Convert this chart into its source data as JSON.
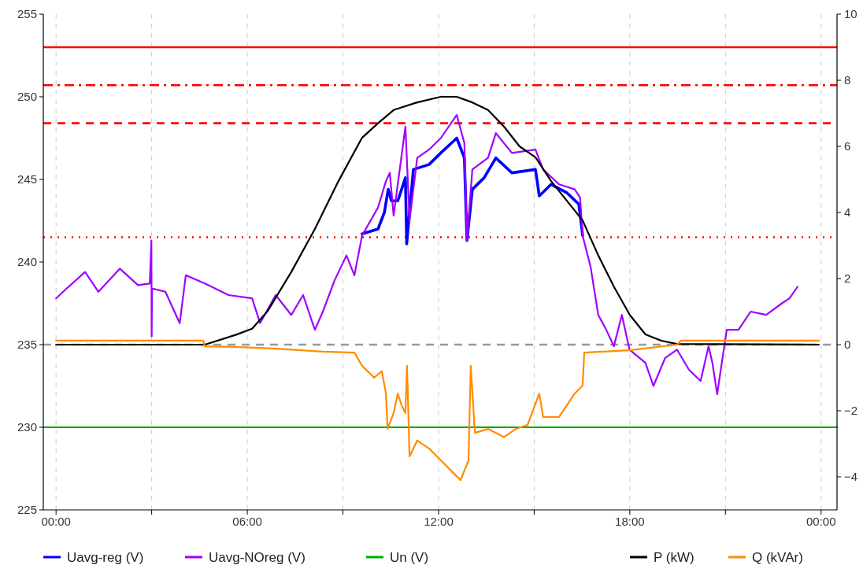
{
  "chart_data": {
    "type": "line",
    "xlim": [
      -0.4,
      24.5
    ],
    "xticks": [
      {
        "value": 0,
        "label": "00:00"
      },
      {
        "value": 3,
        "label": null
      },
      {
        "value": 6,
        "label": "06:00"
      },
      {
        "value": 9,
        "label": null
      },
      {
        "value": 12,
        "label": "12:00"
      },
      {
        "value": 15,
        "label": null
      },
      {
        "value": 18,
        "label": "18:00"
      },
      {
        "value": 21,
        "label": null
      },
      {
        "value": 24,
        "label": "00:00"
      }
    ],
    "ylim": [
      225,
      255
    ],
    "yticks": [
      225,
      230,
      235,
      240,
      245,
      250,
      255
    ],
    "y2lim": [
      -5,
      10
    ],
    "y2ticks": [
      -4,
      -2,
      0,
      2,
      4,
      6,
      8,
      10
    ],
    "grid": "x",
    "legend": "bottom",
    "line_style": "solid",
    "marker": "none",
    "ref_lines": [
      {
        "axis": "y",
        "value": 253,
        "label": null,
        "color": "#ff0000",
        "line_style": "solid"
      },
      {
        "axis": "y",
        "value": 250.7,
        "label": null,
        "color": "#ff0000",
        "line_style": "dashdot"
      },
      {
        "axis": "y",
        "value": 248.4,
        "label": null,
        "color": "#ff0000",
        "line_style": "dashed"
      },
      {
        "axis": "y",
        "value": 241.5,
        "label": null,
        "color": "#ff0000",
        "line_style": "dotted"
      },
      {
        "axis": "y",
        "value": 235,
        "label": null,
        "color": "#999999",
        "line_style": "dashed"
      }
    ],
    "series": [
      {
        "name": "Uavg-reg (V)",
        "color": "#0000ff",
        "x": [
          9.6,
          10.1,
          10.3,
          10.42,
          10.52,
          10.72,
          10.96,
          11.0,
          11.21,
          11.7,
          12.07,
          12.57,
          12.81,
          12.89,
          13.06,
          13.43,
          13.8,
          14.3,
          15.04,
          15.16,
          15.53,
          16.02,
          16.4,
          16.52
        ],
        "values": [
          241.7,
          242.0,
          243.0,
          244.4,
          243.7,
          243.7,
          245.1,
          241.1,
          245.6,
          245.9,
          246.6,
          247.5,
          246.3,
          241.3,
          244.4,
          245.1,
          246.3,
          245.4,
          245.6,
          244.0,
          244.7,
          244.2,
          243.5,
          241.6
        ]
      },
      {
        "name": "Uavg-NOreg (V)",
        "color": "#a000ff",
        "x": [
          0.0,
          0.22,
          0.91,
          1.33,
          2.0,
          2.57,
          2.94,
          2.99,
          3.0,
          3.01,
          3.43,
          3.88,
          4.07,
          4.67,
          5.41,
          6.15,
          6.4,
          6.89,
          7.38,
          7.75,
          8.12,
          8.37,
          8.74,
          9.11,
          9.36,
          9.6,
          10.1,
          10.35,
          10.47,
          10.59,
          10.96,
          11.09,
          11.33,
          11.7,
          12.07,
          12.57,
          12.81,
          12.89,
          13.06,
          13.55,
          13.8,
          14.3,
          15.04,
          15.28,
          15.78,
          16.27,
          16.44,
          16.52,
          16.77,
          17.01,
          17.26,
          17.5,
          17.75,
          17.99,
          18.49,
          18.74,
          19.11,
          19.48,
          19.85,
          20.22,
          20.47,
          20.59,
          20.74,
          21.04,
          21.41,
          21.79,
          22.28,
          22.77,
          23.01,
          23.26
        ],
        "values": [
          237.8,
          238.2,
          239.4,
          238.2,
          239.6,
          238.6,
          238.7,
          241.3,
          235.5,
          238.4,
          238.2,
          236.3,
          239.2,
          238.7,
          238.0,
          237.8,
          236.3,
          238.0,
          236.8,
          238.0,
          235.9,
          237.0,
          238.9,
          240.4,
          239.2,
          241.6,
          243.3,
          244.9,
          245.4,
          242.8,
          248.2,
          242.5,
          246.3,
          246.8,
          247.5,
          248.9,
          247.2,
          241.3,
          245.6,
          246.3,
          247.8,
          246.6,
          246.8,
          245.6,
          244.7,
          244.4,
          243.9,
          241.6,
          239.7,
          236.8,
          235.9,
          234.9,
          236.8,
          234.7,
          233.9,
          232.5,
          234.2,
          234.7,
          233.5,
          232.8,
          234.9,
          233.9,
          232.0,
          235.9,
          235.9,
          237.0,
          236.8,
          237.5,
          237.8,
          238.5
        ]
      },
      {
        "name": "Un (V)",
        "color": "#00aa00",
        "x": [
          -0.4,
          24.5
        ],
        "values": [
          230,
          230
        ]
      },
      {
        "name": "P (kW)",
        "color": "#000000",
        "axis": "y2",
        "x": [
          0.0,
          4.67,
          5.65,
          6.15,
          6.64,
          7.38,
          8.12,
          8.86,
          9.6,
          10.1,
          10.59,
          11.33,
          12.07,
          12.57,
          13.06,
          13.55,
          14.05,
          14.54,
          15.04,
          15.53,
          16.02,
          16.52,
          17.01,
          17.51,
          18.0,
          18.49,
          18.99,
          19.48,
          23.93
        ],
        "values": [
          0,
          0,
          0.3,
          0.48,
          1.02,
          2.2,
          3.5,
          4.95,
          6.26,
          6.7,
          7.1,
          7.33,
          7.5,
          7.5,
          7.33,
          7.1,
          6.6,
          6.0,
          5.67,
          4.95,
          4.36,
          3.76,
          2.7,
          1.74,
          0.9,
          0.31,
          0.12,
          0.02,
          0
        ]
      },
      {
        "name": "Q (kVAr)",
        "color": "#ff8c00",
        "axis": "y2",
        "x": [
          0.0,
          4.62,
          4.67,
          5.65,
          6.89,
          8.37,
          9.36,
          9.6,
          9.98,
          10.22,
          10.35,
          10.4,
          10.59,
          10.72,
          10.84,
          10.96,
          11.01,
          11.09,
          11.33,
          11.7,
          12.07,
          12.44,
          12.69,
          12.94,
          13.01,
          13.14,
          13.55,
          14.05,
          14.42,
          14.79,
          15.16,
          15.28,
          15.78,
          16.27,
          16.52,
          16.57,
          17.99,
          19.48,
          19.6,
          23.93
        ],
        "values": [
          0.12,
          0.12,
          -0.05,
          -0.07,
          -0.12,
          -0.21,
          -0.24,
          -0.64,
          -1.0,
          -0.8,
          -1.48,
          -2.55,
          -2.07,
          -1.48,
          -1.83,
          -2.07,
          -0.64,
          -3.38,
          -2.9,
          -3.14,
          -3.5,
          -3.86,
          -4.1,
          -3.5,
          -0.64,
          -2.67,
          -2.55,
          -2.8,
          -2.55,
          -2.43,
          -1.48,
          -2.19,
          -2.19,
          -1.48,
          -1.24,
          -0.24,
          -0.17,
          0,
          0.12,
          0.12
        ]
      }
    ]
  }
}
